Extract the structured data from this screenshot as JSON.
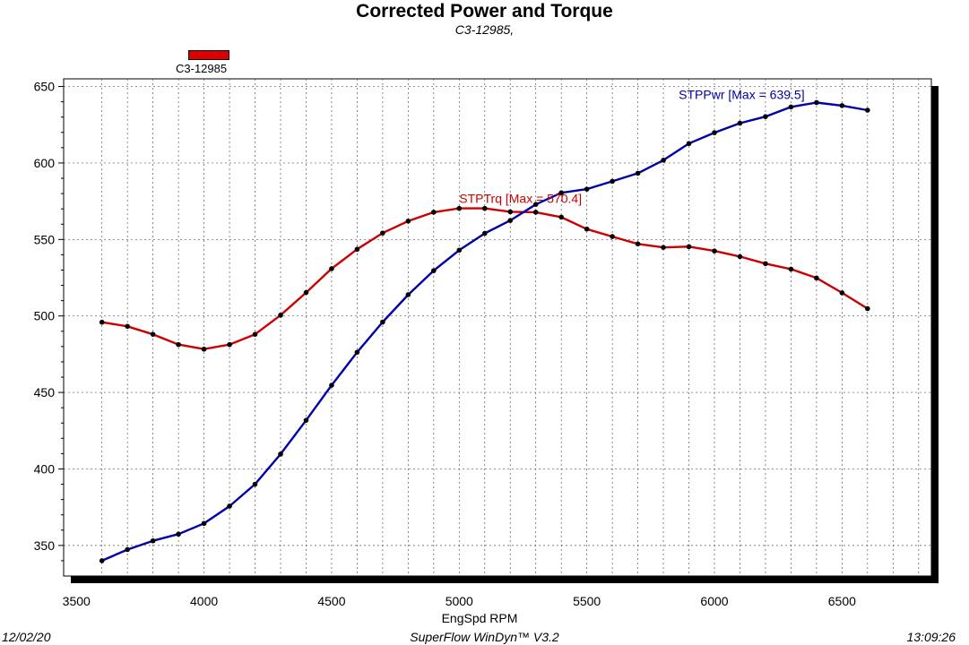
{
  "title": "Corrected Power and Torque",
  "subtitle": "C3-12985,",
  "legend": {
    "label": "C3-12985",
    "color": "#dd0000"
  },
  "footer": {
    "date": "12/02/20",
    "software": "SuperFlow WinDyn™  V3.2",
    "time": "13:09:26"
  },
  "chart_data": {
    "type": "line",
    "xlabel": "EngSpd RPM",
    "ylabel": "",
    "xlim": [
      3450,
      6850
    ],
    "ylim": [
      330,
      655
    ],
    "x_ticks": [
      3500,
      4000,
      4500,
      5000,
      5500,
      6000,
      6500
    ],
    "y_ticks": [
      350,
      400,
      450,
      500,
      550,
      600,
      650
    ],
    "grid": true,
    "x": [
      3600,
      3700,
      3800,
      3900,
      4000,
      4100,
      4200,
      4300,
      4400,
      4500,
      4600,
      4700,
      4800,
      4900,
      5000,
      5100,
      5200,
      5300,
      5400,
      5500,
      5600,
      5700,
      5800,
      5900,
      6000,
      6100,
      6200,
      6300,
      6400,
      6500,
      6600
    ],
    "series": [
      {
        "name": "STPTrq",
        "color": "#cc0000",
        "annotation": "STPTrq [Max = 570.4]",
        "values": [
          495.9,
          493.2,
          488.0,
          481.3,
          478.3,
          481.3,
          488.0,
          500.5,
          515.3,
          530.9,
          543.6,
          554.2,
          562.0,
          567.8,
          570.3,
          570.3,
          568.1,
          567.8,
          564.6,
          556.8,
          551.9,
          547.1,
          544.8,
          545.3,
          542.5,
          538.8,
          534.2,
          530.6,
          524.8,
          515.1,
          504.8
        ]
      },
      {
        "name": "STPPwr",
        "color": "#0000aa",
        "annotation": "STPPwr [Max = 639.5]",
        "values": [
          340.0,
          347.3,
          353.0,
          357.4,
          364.4,
          375.7,
          390.0,
          409.7,
          431.8,
          454.7,
          476.3,
          496.0,
          513.9,
          529.6,
          543.0,
          554.0,
          562.4,
          572.9,
          580.5,
          582.9,
          588.0,
          593.3,
          601.8,
          612.7,
          619.8,
          626.0,
          630.3,
          636.6,
          639.5,
          637.5,
          634.5
        ]
      }
    ]
  }
}
